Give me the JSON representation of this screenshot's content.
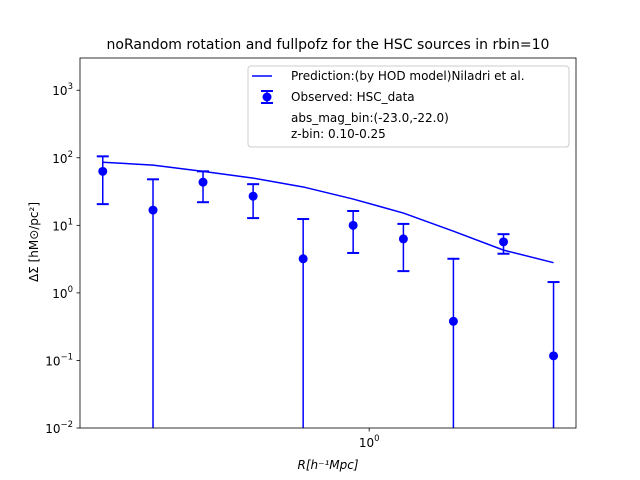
{
  "chart_data": {
    "type": "errorbar",
    "title": "noRandom rotation and fullpofz for the HSC sources in rbin=10",
    "xlabel": "R[h⁻¹Mpc]",
    "ylabel": "ΔΣ [hM⊙/pc²]",
    "x": [
      0.0863,
      0.137,
      0.217,
      0.344,
      0.545,
      0.863,
      1.37,
      2.17,
      3.44,
      5.45
    ],
    "series": [
      {
        "name": "Prediction:(by HOD model)Niladri et al.",
        "color": "#0000ff",
        "style": "line",
        "values": [
          86,
          78,
          63,
          50,
          37,
          24.5,
          15.2,
          8.2,
          4.3,
          2.8
        ]
      },
      {
        "name": "Observed: HSC_data",
        "color": "#0000ff",
        "style": "errorbar",
        "values": [
          63,
          16.8,
          43.6,
          27,
          3.2,
          10,
          6.3,
          0.38,
          5.7,
          0.117
        ],
        "errors_low": [
          42.4,
          16.8,
          21.6,
          14.2,
          3.2,
          6.1,
          4.2,
          0.38,
          1.9,
          0.117
        ],
        "errors_high": [
          42,
          31.2,
          19.4,
          13.7,
          9.2,
          6.3,
          4.2,
          2.82,
          1.7,
          1.33
        ]
      }
    ],
    "legend_notes": [
      "abs_mag_bin:(-23.0,-22.0)",
      "z-bin: 0.10-0.25"
    ],
    "legend": "upper right",
    "xscale": "log",
    "yscale": "log",
    "xlim": [
      0.07,
      6.7
    ],
    "ylim": [
      0.01,
      3000
    ],
    "xticks": [
      {
        "value": 1,
        "label": "10",
        "exponent": "0"
      }
    ],
    "yticks": [
      {
        "value": 0.01,
        "label": "10",
        "exponent": "−2"
      },
      {
        "value": 0.1,
        "label": "10",
        "exponent": "−1"
      },
      {
        "value": 1,
        "label": "10",
        "exponent": "0"
      },
      {
        "value": 10,
        "label": "10",
        "exponent": "1"
      },
      {
        "value": 100,
        "label": "10",
        "exponent": "2"
      },
      {
        "value": 1000,
        "label": "10",
        "exponent": "3"
      }
    ]
  }
}
